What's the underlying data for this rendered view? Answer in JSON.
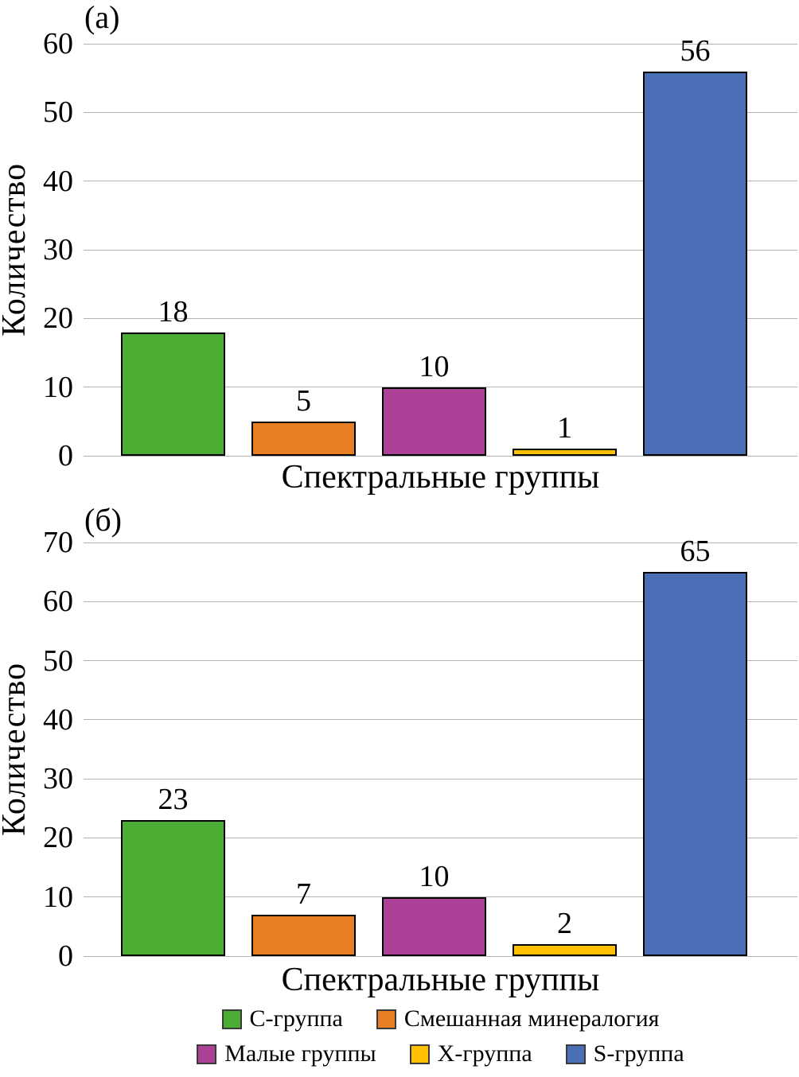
{
  "page": {
    "background": "#ffffff"
  },
  "colors": {
    "green": "#4cad34",
    "orange": "#e87f25",
    "magenta": "#ac4198",
    "yellow": "#fdc101",
    "blue": "#4b6fb7",
    "grid": "#b3b3b3",
    "bar_border": "#000000",
    "text": "#000000"
  },
  "chart_data": [
    {
      "type": "bar",
      "panel_label": "(а)",
      "ylabel": "Количество",
      "xlabel": "Спектральные группы",
      "categories": [
        "С-группа",
        "Смешанная минералогия",
        "Малые группы",
        "X-группа",
        "S-группа"
      ],
      "values": [
        18,
        5,
        10,
        1,
        56
      ],
      "bar_colors": [
        "green",
        "orange",
        "magenta",
        "yellow",
        "blue"
      ],
      "ylim": [
        0,
        60
      ],
      "ytick_step": 10,
      "grid": true,
      "legend_position": "shared-bottom"
    },
    {
      "type": "bar",
      "panel_label": "(б)",
      "ylabel": "Количество",
      "xlabel": "Спектральные группы",
      "categories": [
        "С-группа",
        "Смешанная минералогия",
        "Малые группы",
        "X-группа",
        "S-группа"
      ],
      "values": [
        23,
        7,
        10,
        2,
        65
      ],
      "bar_colors": [
        "green",
        "orange",
        "magenta",
        "yellow",
        "blue"
      ],
      "ylim": [
        0,
        70
      ],
      "ytick_step": 10,
      "grid": true,
      "legend_position": "shared-bottom"
    }
  ],
  "legend": {
    "rows": [
      [
        {
          "label": "С-группа",
          "color": "green"
        },
        {
          "label": "Смешанная минералогия",
          "color": "orange"
        }
      ],
      [
        {
          "label": "Малые группы",
          "color": "magenta"
        },
        {
          "label": "X-группа",
          "color": "yellow"
        },
        {
          "label": "S-группа",
          "color": "blue"
        }
      ]
    ]
  }
}
